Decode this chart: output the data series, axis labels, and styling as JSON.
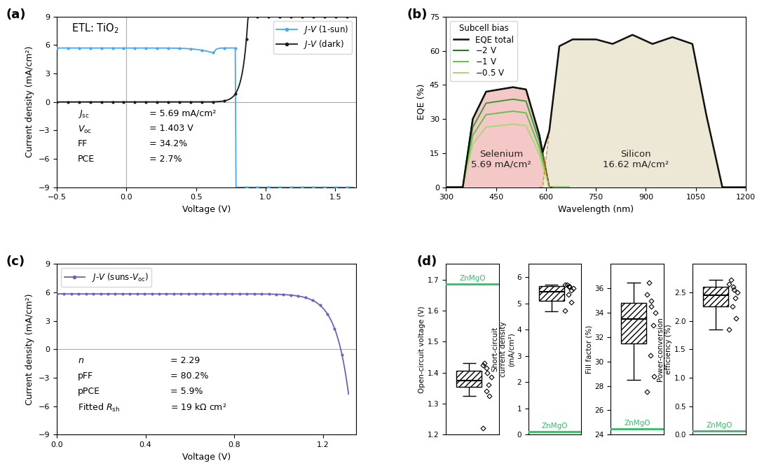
{
  "panel_a": {
    "xlabel": "Voltage (V)",
    "ylabel": "Current density (mA/cm²)",
    "xlim": [
      -0.5,
      1.65
    ],
    "ylim": [
      -9,
      9
    ],
    "xticks": [
      -0.5,
      0.0,
      0.5,
      1.0,
      1.5
    ],
    "yticks": [
      -9,
      -6,
      -3,
      0,
      3,
      6,
      9
    ],
    "jsc": "5.69",
    "voc": "1.403",
    "ff": "34.2",
    "pce": "2.7",
    "color_sun": "#4da6e8",
    "color_dark": "#1a1a1a"
  },
  "panel_b": {
    "xlabel": "Wavelength (nm)",
    "ylabel": "EQE (%)",
    "xlim": [
      300,
      1200
    ],
    "ylim": [
      0,
      75
    ],
    "xticks": [
      300,
      450,
      600,
      750,
      900,
      1050,
      1200
    ],
    "yticks": [
      0,
      15,
      30,
      45,
      60,
      75
    ],
    "se_color": "#f5c8c8",
    "si_color": "#ede8d5",
    "green_dark": "#1a7a1a",
    "green_mid2": "#3a9a3a",
    "green_mid": "#6abf50",
    "green_light": "#a8d878",
    "eqe_total_color": "#111111",
    "se_border_color": "#cc2222",
    "si_border_color": "#c89020"
  },
  "panel_c": {
    "xlabel": "Voltage (V)",
    "ylabel": "Current density (mA/cm²)",
    "xlim": [
      0.0,
      1.35
    ],
    "ylim": [
      -9,
      9
    ],
    "xticks": [
      0.0,
      0.4,
      0.8,
      1.2
    ],
    "yticks": [
      -9,
      -6,
      -3,
      0,
      3,
      6,
      9
    ],
    "n_val": "2.29",
    "pff": "80.2",
    "ppce": "5.9",
    "rsh": "19",
    "color": "#7060bb"
  },
  "panel_d": {
    "zmgo_color": "#33bb66",
    "voc_zmgo": 1.685,
    "voc_q1": 1.355,
    "voc_median": 1.375,
    "voc_q3": 1.405,
    "voc_wlo": 1.325,
    "voc_whi": 1.43,
    "voc_pts": [
      1.22,
      1.325,
      1.34,
      1.36,
      1.385,
      1.4,
      1.415,
      1.425,
      1.43
    ],
    "voc_ylim": [
      1.2,
      1.75
    ],
    "voc_yticks": [
      1.2,
      1.3,
      1.4,
      1.5,
      1.6,
      1.7
    ],
    "voc_ylabel": "Open-circuit voltage (V)",
    "jsc_zmgo": 0.12,
    "jsc_q1": 5.1,
    "jsc_median": 5.45,
    "jsc_q3": 5.65,
    "jsc_wlo": 4.7,
    "jsc_whi": 5.72,
    "jsc_pts": [
      4.72,
      5.05,
      5.35,
      5.5,
      5.58,
      5.62,
      5.66,
      5.7,
      5.72
    ],
    "jsc_ylim": [
      0,
      6.5
    ],
    "jsc_yticks": [
      0,
      1,
      2,
      3,
      4,
      5,
      6
    ],
    "jsc_ylabel": "Short-circuit\ncurrent density\n(mA/cm²)",
    "ff_zmgo": 24.5,
    "ff_q1": 31.5,
    "ff_median": 33.5,
    "ff_q3": 34.8,
    "ff_wlo": 28.5,
    "ff_whi": 36.5,
    "ff_pts": [
      27.5,
      28.8,
      30.5,
      33.0,
      34.0,
      34.5,
      35.0,
      35.5,
      36.5
    ],
    "ff_ylim": [
      24,
      38
    ],
    "ff_yticks": [
      24,
      26,
      28,
      30,
      32,
      34,
      36
    ],
    "ff_ylabel": "Fill factor (%)",
    "pce_zmgo": 0.07,
    "pce_q1": 2.25,
    "pce_median": 2.45,
    "pce_q3": 2.6,
    "pce_wlo": 1.85,
    "pce_whi": 2.72,
    "pce_pts": [
      1.85,
      2.05,
      2.25,
      2.4,
      2.5,
      2.55,
      2.6,
      2.65,
      2.72
    ],
    "pce_ylim": [
      0,
      3.0
    ],
    "pce_yticks": [
      0.0,
      0.5,
      1.0,
      1.5,
      2.0,
      2.5
    ],
    "pce_ylabel": "Power-conversion\nefficiency (%)"
  }
}
